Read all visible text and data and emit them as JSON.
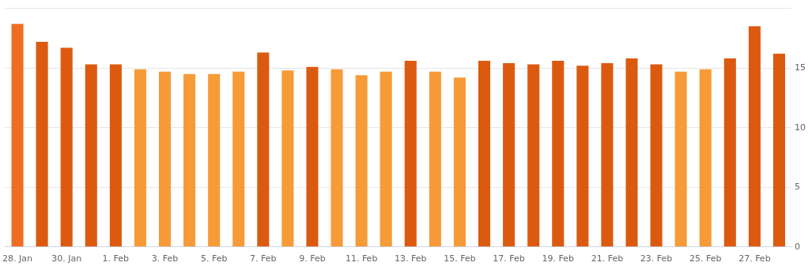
{
  "chart_data": {
    "type": "bar",
    "categories": [
      "28. Jan",
      null,
      "30. Jan",
      null,
      "1. Feb",
      null,
      "3. Feb",
      null,
      "5. Feb",
      null,
      "7. Feb",
      null,
      "9. Feb",
      null,
      "11. Feb",
      null,
      "13. Feb",
      null,
      "15. Feb",
      null,
      "17. Feb",
      null,
      "19. Feb",
      null,
      "21. Feb",
      null,
      "23. Feb",
      null,
      "25. Feb",
      null,
      "27. Feb",
      null
    ],
    "values": [
      18.7,
      17.2,
      16.7,
      15.3,
      15.3,
      14.9,
      14.7,
      14.5,
      14.5,
      14.7,
      16.3,
      14.8,
      15.1,
      14.9,
      14.4,
      14.7,
      15.6,
      14.7,
      14.2,
      15.6,
      15.4,
      15.3,
      15.6,
      15.2,
      15.4,
      15.8,
      15.3,
      14.7,
      14.9,
      15.8,
      18.5,
      16.2
    ],
    "colors": [
      "#f06c22",
      "#dc5a0f",
      "#dc5a0f",
      "#dc5a0f",
      "#dc5a0f",
      "#f79a38",
      "#f79a38",
      "#f79a38",
      "#f79a38",
      "#f79a38",
      "#dc5a0f",
      "#f79a38",
      "#dc5a0f",
      "#f79a38",
      "#f79a38",
      "#f79a38",
      "#dc5a0f",
      "#f79a38",
      "#f79a38",
      "#dc5a0f",
      "#dc5a0f",
      "#dc5a0f",
      "#dc5a0f",
      "#dc5a0f",
      "#dc5a0f",
      "#dc5a0f",
      "#dc5a0f",
      "#f79a38",
      "#f79a38",
      "#dc5a0f",
      "#dc5a0f",
      "#dc5a0f"
    ],
    "ylim": [
      0,
      20
    ],
    "yticks": [
      0,
      5,
      10,
      15,
      {
        "value": 20,
        "label": null
      }
    ],
    "grid": "y",
    "legend": false
  }
}
